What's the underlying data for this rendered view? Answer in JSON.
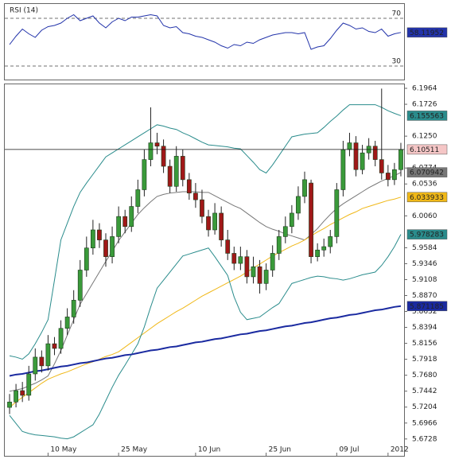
{
  "chart_data": [
    {
      "type": "line",
      "title": "RSI (14)",
      "color": "#2233aa",
      "ylim": [
        20,
        80
      ],
      "yticks": [
        30,
        70
      ],
      "values": [
        48,
        55,
        61,
        57,
        54,
        60,
        63,
        64,
        66,
        70,
        73,
        68,
        70,
        72,
        66,
        62,
        67,
        70,
        68,
        71,
        71,
        72,
        73,
        72,
        64,
        62,
        63,
        58,
        57,
        55,
        54,
        52,
        50,
        47,
        45,
        48,
        47,
        50,
        49,
        52,
        54,
        56,
        57,
        58,
        58,
        57,
        58,
        44,
        46,
        47,
        53,
        60,
        66,
        64,
        61,
        62,
        59,
        58,
        61,
        55,
        57,
        58.11952
      ]
    },
    {
      "type": "candlestick",
      "up_color": "#3a9a3a",
      "down_color": "#a01818",
      "last_price_line": true,
      "last_price_color": "#f5c6c6",
      "ylim": [
        5.65,
        6.2
      ],
      "yticks": [
        6.1964,
        6.1726,
        {
          "value": 6.125,
          "label": "6.1250"
        },
        6.0774,
        6.0536,
        {
          "value": 6.006,
          "label": "6.0060"
        },
        5.9584,
        5.9346,
        5.9108,
        {
          "value": 5.887,
          "label": "5.8870"
        },
        5.8632,
        5.8394,
        5.8156,
        5.7918,
        {
          "value": 5.768,
          "label": "5.7680"
        },
        5.7442,
        5.7204,
        5.6966,
        5.6728
      ],
      "categories": [
        null,
        null,
        null,
        null,
        null,
        null,
        "10 May",
        null,
        null,
        null,
        null,
        null,
        null,
        null,
        null,
        null,
        null,
        "25 May",
        null,
        null,
        null,
        null,
        null,
        null,
        null,
        null,
        null,
        null,
        null,
        "10 Jun",
        null,
        null,
        null,
        null,
        null,
        null,
        null,
        null,
        null,
        null,
        "25 Jun",
        null,
        null,
        null,
        null,
        null,
        null,
        null,
        null,
        null,
        null,
        "09 Jul",
        null,
        null,
        null,
        null,
        null,
        null,
        null,
        "2012",
        null,
        null
      ],
      "open": [
        5.72,
        5.728,
        5.745,
        5.738,
        5.77,
        5.795,
        5.782,
        5.815,
        5.808,
        5.838,
        5.855,
        5.88,
        5.925,
        5.958,
        5.985,
        5.97,
        5.945,
        5.975,
        6.005,
        5.99,
        6.02,
        6.045,
        6.09,
        6.115,
        6.11,
        6.08,
        6.05,
        6.095,
        6.06,
        6.04,
        6.03,
        6.005,
        5.985,
        6.01,
        5.97,
        5.95,
        5.935,
        5.945,
        5.915,
        5.93,
        5.905,
        5.925,
        5.95,
        5.975,
        5.99,
        6.01,
        6.035,
        6.055,
        5.945,
        5.955,
        5.96,
        5.975,
        6.045,
        6.105,
        6.115,
        6.075,
        6.1,
        6.11,
        6.09,
        6.07,
        6.06,
        6.075
      ],
      "high": [
        5.74,
        5.755,
        5.758,
        5.782,
        5.808,
        5.805,
        5.828,
        5.825,
        5.85,
        5.868,
        5.895,
        5.94,
        5.975,
        6.0,
        5.995,
        5.98,
        5.99,
        6.02,
        6.015,
        6.035,
        6.06,
        6.105,
        6.168,
        6.13,
        6.12,
        6.09,
        6.11,
        6.105,
        6.07,
        6.055,
        6.045,
        6.015,
        6.025,
        6.02,
        5.985,
        5.96,
        5.96,
        5.955,
        5.945,
        5.94,
        5.935,
        5.962,
        5.985,
        6.005,
        6.022,
        6.05,
        6.072,
        6.06,
        5.965,
        5.972,
        5.985,
        6.055,
        6.118,
        6.13,
        6.125,
        6.112,
        6.122,
        6.118,
        6.196,
        6.082,
        6.085,
        6.115
      ],
      "low": [
        5.71,
        5.72,
        5.728,
        5.73,
        5.76,
        5.772,
        5.775,
        5.798,
        5.8,
        5.828,
        5.845,
        5.87,
        5.915,
        5.948,
        5.958,
        5.93,
        5.935,
        5.965,
        5.98,
        5.982,
        6.01,
        6.035,
        6.08,
        6.098,
        6.07,
        6.04,
        6.042,
        6.05,
        6.03,
        6.018,
        5.995,
        5.975,
        5.978,
        5.96,
        5.94,
        5.925,
        5.925,
        5.905,
        5.905,
        5.89,
        5.895,
        5.915,
        5.94,
        5.965,
        5.98,
        6.0,
        6.025,
        5.935,
        5.938,
        5.945,
        5.95,
        5.965,
        6.035,
        6.095,
        6.065,
        6.068,
        6.09,
        6.08,
        6.06,
        6.05,
        6.052,
        6.065
      ],
      "close": [
        5.728,
        5.745,
        5.738,
        5.77,
        5.795,
        5.782,
        5.815,
        5.808,
        5.838,
        5.855,
        5.88,
        5.925,
        5.958,
        5.985,
        5.97,
        5.945,
        5.975,
        6.005,
        5.99,
        6.02,
        6.045,
        6.09,
        6.115,
        6.11,
        6.08,
        6.05,
        6.095,
        6.06,
        6.04,
        6.03,
        6.005,
        5.985,
        6.01,
        5.97,
        5.95,
        5.935,
        5.945,
        5.915,
        5.93,
        5.905,
        5.925,
        5.95,
        5.975,
        5.99,
        6.01,
        6.035,
        6.06,
        5.945,
        5.955,
        5.96,
        5.975,
        6.045,
        6.105,
        6.115,
        6.075,
        6.1,
        6.11,
        6.09,
        6.07,
        6.06,
        6.075,
        6.10511
      ],
      "overlays": [
        {
          "color": "#2a8c8c",
          "values": [
            5.797,
            5.795,
            5.792,
            5.8,
            5.815,
            5.832,
            5.851,
            5.91,
            5.97,
            5.995,
            6.02,
            6.041,
            6.055,
            6.068,
            6.081,
            6.094,
            6.1,
            6.106,
            6.112,
            6.118,
            6.124,
            6.13,
            6.136,
            6.142,
            6.14,
            6.137,
            6.135,
            6.13,
            6.126,
            6.121,
            6.116,
            6.112,
            6.111,
            6.11,
            6.109,
            6.107,
            6.106,
            6.096,
            6.086,
            6.075,
            6.07,
            6.082,
            6.096,
            6.11,
            6.124,
            6.126,
            6.128,
            6.129,
            6.13,
            6.138,
            6.147,
            6.155,
            6.164,
            6.172,
            6.172,
            6.172,
            6.172,
            6.172,
            6.168,
            6.163,
            6.159,
            6.155563
          ]
        },
        {
          "color": "#777777",
          "values": [
            5.744,
            5.746,
            5.748,
            5.752,
            5.756,
            5.761,
            5.767,
            5.785,
            5.805,
            5.828,
            5.851,
            5.874,
            5.89,
            5.906,
            5.922,
            5.938,
            5.953,
            5.969,
            5.982,
            5.995,
            6.008,
            6.018,
            6.027,
            6.035,
            6.038,
            6.04,
            6.041,
            6.042,
            6.042,
            6.042,
            6.041,
            6.041,
            6.036,
            6.031,
            6.026,
            6.021,
            6.017,
            6.01,
            6.003,
            5.996,
            5.99,
            5.986,
            5.983,
            5.979,
            5.976,
            5.973,
            5.97,
            5.978,
            5.987,
            5.998,
            6.008,
            6.017,
            6.024,
            6.03,
            6.036,
            6.042,
            6.048,
            6.053,
            6.058,
            6.062,
            6.066,
            6.070942
          ]
        },
        {
          "color": "#f0b818",
          "values": [
            5.72,
            5.728,
            5.735,
            5.742,
            5.749,
            5.756,
            5.762,
            5.766,
            5.77,
            5.773,
            5.777,
            5.781,
            5.785,
            5.788,
            5.792,
            5.796,
            5.799,
            5.803,
            5.81,
            5.817,
            5.824,
            5.831,
            5.838,
            5.845,
            5.851,
            5.857,
            5.863,
            5.868,
            5.874,
            5.88,
            5.886,
            5.891,
            5.896,
            5.901,
            5.906,
            5.911,
            5.916,
            5.922,
            5.928,
            5.934,
            5.94,
            5.946,
            5.951,
            5.956,
            5.961,
            5.965,
            5.97,
            5.976,
            5.982,
            5.987,
            5.993,
            5.998,
            6.003,
            6.008,
            6.012,
            6.017,
            6.02,
            6.023,
            6.026,
            6.029,
            6.031,
            6.033933
          ]
        },
        {
          "color": "#2a8c8c",
          "values": [
            5.708,
            5.696,
            5.684,
            5.681,
            5.679,
            5.678,
            5.677,
            5.676,
            5.674,
            5.673,
            5.676,
            5.682,
            5.688,
            5.694,
            5.71,
            5.73,
            5.75,
            5.768,
            5.783,
            5.799,
            5.815,
            5.84,
            5.87,
            5.898,
            5.91,
            5.922,
            5.934,
            5.946,
            5.949,
            5.952,
            5.955,
            5.958,
            5.945,
            5.931,
            5.917,
            5.885,
            5.862,
            5.851,
            5.853,
            5.855,
            5.862,
            5.869,
            5.875,
            5.89,
            5.905,
            5.908,
            5.911,
            5.914,
            5.916,
            5.915,
            5.913,
            5.912,
            5.91,
            5.912,
            5.915,
            5.918,
            5.92,
            5.922,
            5.932,
            5.945,
            5.96,
            5.978283
          ]
        },
        {
          "color": "#1a2aa0",
          "values": [
            5.767,
            5.769,
            5.77,
            5.772,
            5.774,
            5.775,
            5.777,
            5.779,
            5.781,
            5.782,
            5.784,
            5.786,
            5.787,
            5.789,
            5.791,
            5.793,
            5.794,
            5.796,
            5.798,
            5.799,
            5.801,
            5.803,
            5.805,
            5.806,
            5.808,
            5.81,
            5.811,
            5.813,
            5.815,
            5.817,
            5.818,
            5.82,
            5.822,
            5.823,
            5.825,
            5.827,
            5.829,
            5.83,
            5.832,
            5.834,
            5.835,
            5.837,
            5.839,
            5.841,
            5.842,
            5.844,
            5.846,
            5.847,
            5.849,
            5.851,
            5.853,
            5.854,
            5.856,
            5.858,
            5.859,
            5.861,
            5.863,
            5.865,
            5.866,
            5.868,
            5.87,
            5.871185
          ]
        }
      ]
    }
  ]
}
